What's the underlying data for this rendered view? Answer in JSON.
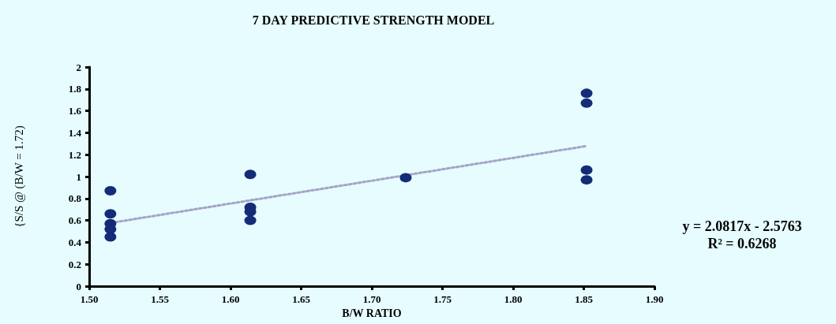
{
  "chart_data": {
    "type": "scatter",
    "title": "7 DAY PREDICTIVE STRENGTH MODEL",
    "xlabel": "B/W RATIO",
    "ylabel": "{S/S @ (B/W = 1.72)",
    "xlim": [
      1.5,
      1.9
    ],
    "xticks": [
      {
        "value": 1.5,
        "label": "1.50"
      },
      {
        "value": 1.55,
        "label": "1.55"
      },
      {
        "value": 1.6,
        "label": "1.60"
      },
      {
        "value": 1.65,
        "label": "1.65"
      },
      {
        "value": 1.7,
        "label": "1.70"
      },
      {
        "value": 1.75,
        "label": "1.75"
      },
      {
        "value": 1.8,
        "label": "1.80"
      },
      {
        "value": 1.85,
        "label": "1.85"
      },
      {
        "value": 1.9,
        "label": "1.90"
      }
    ],
    "ylim": [
      0,
      2
    ],
    "yticks": [
      0,
      0.2,
      0.4,
      0.6,
      0.8,
      1,
      1.2,
      1.4,
      1.6,
      1.8,
      2
    ],
    "grid": false,
    "marker": "circle",
    "series": [
      {
        "color": "#142c78",
        "x": [
          1.515,
          1.515,
          1.515,
          1.515,
          1.515,
          1.614,
          1.614,
          1.614,
          1.614,
          1.724,
          1.852,
          1.852,
          1.852,
          1.852
        ],
        "values": [
          0.87,
          0.66,
          0.57,
          0.52,
          0.45,
          1.02,
          0.72,
          0.68,
          0.6,
          0.99,
          1.76,
          1.67,
          1.06,
          0.97
        ]
      },
      {
        "type": "line",
        "color": "#a4a4c8",
        "line_style": "dotted",
        "marker": "none",
        "x": [
          1.515,
          1.852
        ],
        "values": [
          0.577,
          1.279
        ]
      }
    ],
    "annotations": [
      "y = 2.0817x - 2.5763",
      "R² = 0.6268"
    ]
  }
}
